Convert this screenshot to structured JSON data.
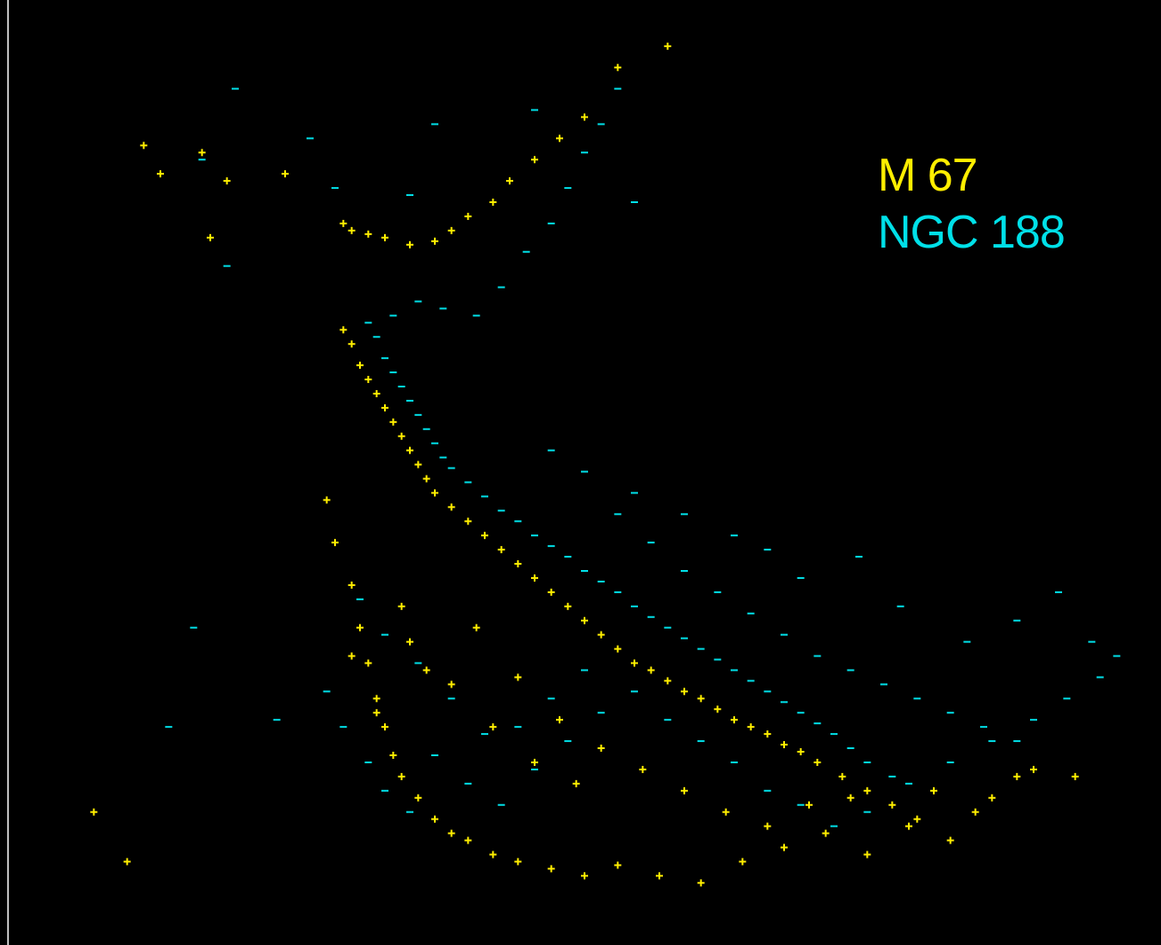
{
  "chart_data": {
    "type": "scatter",
    "title": "",
    "xlabel": "",
    "ylabel": "",
    "grid": false,
    "legend_position": "top-right",
    "series": [
      {
        "name": "M 67",
        "color": "#ffee00",
        "marker": "plus",
        "points": [
          [
            0.37,
            2.4
          ],
          [
            0.38,
            2.6
          ],
          [
            0.39,
            2.9
          ],
          [
            0.4,
            3.1
          ],
          [
            0.41,
            3.3
          ],
          [
            0.42,
            3.5
          ],
          [
            0.43,
            3.7
          ],
          [
            0.44,
            3.9
          ],
          [
            0.45,
            4.1
          ],
          [
            0.46,
            4.3
          ],
          [
            0.47,
            4.5
          ],
          [
            0.48,
            4.7
          ],
          [
            0.5,
            4.9
          ],
          [
            0.52,
            5.1
          ],
          [
            0.54,
            5.3
          ],
          [
            0.56,
            5.5
          ],
          [
            0.58,
            5.7
          ],
          [
            0.6,
            5.9
          ],
          [
            0.62,
            6.1
          ],
          [
            0.64,
            6.3
          ],
          [
            0.66,
            6.5
          ],
          [
            0.68,
            6.7
          ],
          [
            0.7,
            6.9
          ],
          [
            0.72,
            7.1
          ],
          [
            0.74,
            7.2
          ],
          [
            0.76,
            7.35
          ],
          [
            0.78,
            7.5
          ],
          [
            0.8,
            7.6
          ],
          [
            0.82,
            7.75
          ],
          [
            0.84,
            7.9
          ],
          [
            0.86,
            8.0
          ],
          [
            0.88,
            8.1
          ],
          [
            0.9,
            8.25
          ],
          [
            0.92,
            8.35
          ],
          [
            0.94,
            8.5
          ],
          [
            0.97,
            8.7
          ],
          [
            1.0,
            8.9
          ],
          [
            1.03,
            9.1
          ],
          [
            1.06,
            9.3
          ],
          [
            0.37,
            0.9
          ],
          [
            0.38,
            1.0
          ],
          [
            0.4,
            1.05
          ],
          [
            0.42,
            1.1
          ],
          [
            0.45,
            1.2
          ],
          [
            0.48,
            1.15
          ],
          [
            0.5,
            1.0
          ],
          [
            0.52,
            0.8
          ],
          [
            0.55,
            0.6
          ],
          [
            0.57,
            0.3
          ],
          [
            0.6,
            0.0
          ],
          [
            0.63,
            -0.3
          ],
          [
            0.66,
            -0.6
          ],
          [
            0.7,
            -1.3
          ],
          [
            0.76,
            -1.6
          ],
          [
            0.13,
            -0.2
          ],
          [
            0.2,
            -0.1
          ],
          [
            0.23,
            0.3
          ],
          [
            0.3,
            0.2
          ],
          [
            0.21,
            1.1
          ],
          [
            0.15,
            0.2
          ],
          [
            0.35,
            4.8
          ],
          [
            0.36,
            5.4
          ],
          [
            0.38,
            6.0
          ],
          [
            0.39,
            6.6
          ],
          [
            0.4,
            7.1
          ],
          [
            0.41,
            7.6
          ],
          [
            0.42,
            8.0
          ],
          [
            0.43,
            8.4
          ],
          [
            0.44,
            8.7
          ],
          [
            0.46,
            9.0
          ],
          [
            0.48,
            9.3
          ],
          [
            0.5,
            9.5
          ],
          [
            0.52,
            9.6
          ],
          [
            0.55,
            9.8
          ],
          [
            0.58,
            9.9
          ],
          [
            0.62,
            10.0
          ],
          [
            0.66,
            10.1
          ],
          [
            0.7,
            9.95
          ],
          [
            0.75,
            10.1
          ],
          [
            0.8,
            10.2
          ],
          [
            0.85,
            9.9
          ],
          [
            0.9,
            9.7
          ],
          [
            0.95,
            9.5
          ],
          [
            1.0,
            9.8
          ],
          [
            1.05,
            9.4
          ],
          [
            1.1,
            9.6
          ],
          [
            1.15,
            9.0
          ],
          [
            1.2,
            8.6
          ],
          [
            1.25,
            8.7
          ],
          [
            0.45,
            6.8
          ],
          [
            0.5,
            7.4
          ],
          [
            0.55,
            8.0
          ],
          [
            0.6,
            8.5
          ],
          [
            0.65,
            8.8
          ],
          [
            0.38,
            7.0
          ],
          [
            0.41,
            7.8
          ],
          [
            0.44,
            6.3
          ],
          [
            0.47,
            7.2
          ],
          [
            0.53,
            6.6
          ],
          [
            0.58,
            7.3
          ],
          [
            0.63,
            7.9
          ],
          [
            0.68,
            8.3
          ],
          [
            0.73,
            8.6
          ],
          [
            0.78,
            8.9
          ],
          [
            0.83,
            9.2
          ],
          [
            0.88,
            9.4
          ],
          [
            0.93,
            9.1
          ],
          [
            0.98,
            9.0
          ],
          [
            1.08,
            8.9
          ],
          [
            1.13,
            9.2
          ],
          [
            1.18,
            8.7
          ],
          [
            0.11,
            9.9
          ],
          [
            0.07,
            9.2
          ]
        ]
      },
      {
        "name": "NGC 188",
        "color": "#00e0e8",
        "marker": "dash",
        "points": [
          [
            0.4,
            2.3
          ],
          [
            0.41,
            2.5
          ],
          [
            0.42,
            2.8
          ],
          [
            0.43,
            3.0
          ],
          [
            0.44,
            3.2
          ],
          [
            0.45,
            3.4
          ],
          [
            0.46,
            3.6
          ],
          [
            0.47,
            3.8
          ],
          [
            0.48,
            4.0
          ],
          [
            0.49,
            4.2
          ],
          [
            0.5,
            4.35
          ],
          [
            0.52,
            4.55
          ],
          [
            0.54,
            4.75
          ],
          [
            0.56,
            4.95
          ],
          [
            0.58,
            5.1
          ],
          [
            0.6,
            5.3
          ],
          [
            0.62,
            5.45
          ],
          [
            0.64,
            5.6
          ],
          [
            0.66,
            5.8
          ],
          [
            0.68,
            5.95
          ],
          [
            0.7,
            6.1
          ],
          [
            0.72,
            6.3
          ],
          [
            0.74,
            6.45
          ],
          [
            0.76,
            6.6
          ],
          [
            0.78,
            6.75
          ],
          [
            0.8,
            6.9
          ],
          [
            0.82,
            7.05
          ],
          [
            0.84,
            7.2
          ],
          [
            0.86,
            7.35
          ],
          [
            0.88,
            7.5
          ],
          [
            0.9,
            7.65
          ],
          [
            0.92,
            7.8
          ],
          [
            0.94,
            7.95
          ],
          [
            0.96,
            8.1
          ],
          [
            0.98,
            8.3
          ],
          [
            1.0,
            8.5
          ],
          [
            1.03,
            8.7
          ],
          [
            0.43,
            2.2
          ],
          [
            0.46,
            2.0
          ],
          [
            0.49,
            2.1
          ],
          [
            0.53,
            2.2
          ],
          [
            0.56,
            1.8
          ],
          [
            0.59,
            1.3
          ],
          [
            0.62,
            0.9
          ],
          [
            0.64,
            0.4
          ],
          [
            0.66,
            -0.1
          ],
          [
            0.68,
            -0.5
          ],
          [
            0.7,
            -1.0
          ],
          [
            0.24,
            -1.0
          ],
          [
            0.33,
            -0.3
          ],
          [
            0.36,
            0.4
          ],
          [
            0.45,
            0.5
          ],
          [
            0.48,
            -0.5
          ],
          [
            0.6,
            -0.7
          ],
          [
            0.72,
            0.6
          ],
          [
            0.2,
            0.0
          ],
          [
            0.23,
            1.5
          ],
          [
            0.19,
            6.6
          ],
          [
            0.16,
            8.0
          ],
          [
            0.29,
            7.9
          ],
          [
            0.35,
            7.5
          ],
          [
            0.37,
            8.0
          ],
          [
            0.4,
            8.5
          ],
          [
            0.42,
            8.9
          ],
          [
            0.45,
            9.2
          ],
          [
            0.48,
            8.4
          ],
          [
            0.52,
            8.8
          ],
          [
            0.56,
            9.1
          ],
          [
            0.6,
            8.6
          ],
          [
            0.64,
            8.2
          ],
          [
            0.68,
            7.8
          ],
          [
            0.72,
            7.5
          ],
          [
            0.76,
            7.9
          ],
          [
            0.8,
            8.2
          ],
          [
            0.84,
            8.5
          ],
          [
            0.88,
            8.9
          ],
          [
            0.92,
            9.1
          ],
          [
            0.96,
            9.4
          ],
          [
            1.0,
            9.2
          ],
          [
            1.05,
            8.8
          ],
          [
            1.1,
            8.5
          ],
          [
            1.15,
            8.2
          ],
          [
            1.2,
            7.9
          ],
          [
            1.24,
            7.6
          ],
          [
            1.28,
            7.3
          ],
          [
            1.3,
            7.0
          ],
          [
            0.7,
            5.0
          ],
          [
            0.74,
            5.4
          ],
          [
            0.78,
            5.8
          ],
          [
            0.82,
            6.1
          ],
          [
            0.86,
            6.4
          ],
          [
            0.9,
            6.7
          ],
          [
            0.94,
            7.0
          ],
          [
            0.98,
            7.2
          ],
          [
            1.02,
            7.4
          ],
          [
            1.06,
            7.6
          ],
          [
            1.1,
            7.8
          ],
          [
            1.14,
            8.0
          ],
          [
            1.18,
            8.2
          ],
          [
            0.62,
            4.1
          ],
          [
            0.66,
            4.4
          ],
          [
            0.72,
            4.7
          ],
          [
            0.78,
            5.0
          ],
          [
            0.84,
            5.3
          ],
          [
            0.88,
            5.5
          ],
          [
            0.92,
            5.9
          ],
          [
            0.99,
            5.6
          ],
          [
            1.04,
            6.3
          ],
          [
            1.12,
            6.8
          ],
          [
            1.18,
            6.5
          ],
          [
            1.23,
            6.1
          ],
          [
            1.27,
            6.8
          ],
          [
            0.39,
            6.2
          ],
          [
            0.42,
            6.7
          ],
          [
            0.46,
            7.1
          ],
          [
            0.5,
            7.6
          ],
          [
            0.54,
            8.1
          ],
          [
            0.58,
            8.0
          ],
          [
            0.62,
            7.6
          ],
          [
            0.66,
            7.2
          ]
        ]
      }
    ]
  }
}
